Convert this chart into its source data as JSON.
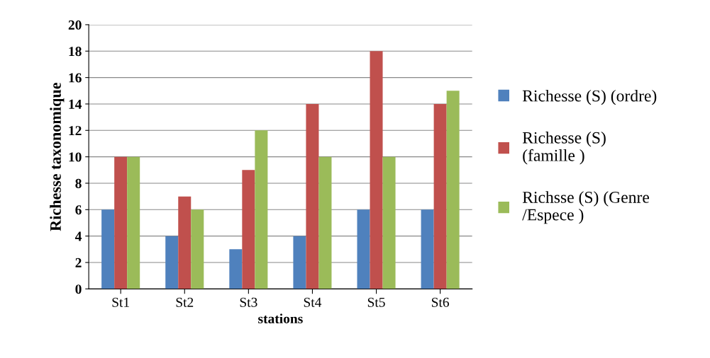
{
  "chart_data": {
    "type": "bar",
    "xlabel": "stations",
    "ylabel": "Richesse taxonomique",
    "categories": [
      "St1",
      "St2",
      "St3",
      "St4",
      "St5",
      "St6"
    ],
    "series": [
      {
        "name": "Richesse (S) (ordre)",
        "color": "#4f81bd",
        "values": [
          6,
          4,
          3,
          4,
          6,
          6
        ]
      },
      {
        "name": "Richesse (S) (famille )",
        "color": "#c0504d",
        "values": [
          10,
          7,
          9,
          14,
          18,
          14
        ]
      },
      {
        "name": "Richsse (S) (Genre /Espece )",
        "color": "#9bbb59",
        "values": [
          10,
          6,
          12,
          10,
          10,
          15
        ]
      }
    ],
    "ylim": [
      0,
      20
    ],
    "yticks": [
      0,
      2,
      4,
      6,
      8,
      10,
      12,
      14,
      16,
      18,
      20
    ],
    "grid": "y",
    "legend": "right"
  }
}
